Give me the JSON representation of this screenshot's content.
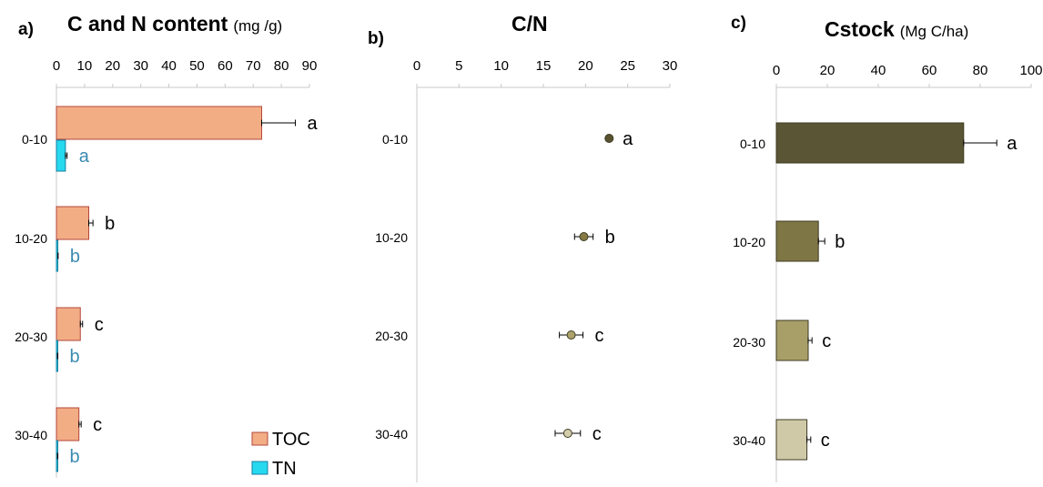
{
  "chart_data": [
    {
      "type": "bar",
      "panel": "a)",
      "title": "C and N content",
      "title_unit": "(mg /g)",
      "orientation": "horizontal",
      "xlim": [
        0,
        90
      ],
      "xticks": [
        "0",
        "10",
        "20",
        "30",
        "40",
        "50",
        "60",
        "70",
        "80",
        "90"
      ],
      "categories": [
        "0-10",
        "10-20",
        "20-30",
        "30-40"
      ],
      "series": [
        {
          "name": "TOC",
          "values": [
            73,
            11.5,
            8.5,
            8
          ],
          "errors": [
            12,
            1.5,
            0.8,
            0.8
          ],
          "letters": [
            "a",
            "b",
            "c",
            "c"
          ],
          "color": "#f2ad85",
          "stroke": "#b5463b",
          "letter_color": "#000000"
        },
        {
          "name": "TN",
          "values": [
            3.2,
            0.5,
            0.4,
            0.4
          ],
          "errors": [
            0.6,
            0.1,
            0.1,
            0.1
          ],
          "letters": [
            "a",
            "b",
            "b",
            "b"
          ],
          "color": "#26d9ef",
          "stroke": "#1a7fa0",
          "letter_color": "#3a8bb0"
        }
      ],
      "legend": "bottom-right"
    },
    {
      "type": "scatter",
      "panel": "b)",
      "title": "C/N",
      "xlim": [
        0,
        30
      ],
      "xticks": [
        "0",
        "5",
        "10",
        "15",
        "20",
        "25",
        "30"
      ],
      "categories": [
        "0-10",
        "10-20",
        "20-30",
        "30-40"
      ],
      "values": [
        22.8,
        19.8,
        18.3,
        17.9
      ],
      "errors": [
        0.2,
        1.1,
        1.4,
        1.5
      ],
      "letters": [
        "a",
        "b",
        "c",
        "c"
      ],
      "colors": [
        "#58522f",
        "#857a45",
        "#ada26a",
        "#d2ccaa"
      ]
    },
    {
      "type": "bar",
      "panel": "c)",
      "title": "Cstock",
      "title_unit": "(Mg C/ha)",
      "orientation": "horizontal",
      "xlim": [
        0,
        100
      ],
      "xticks": [
        "0",
        "20",
        "40",
        "60",
        "80",
        "100"
      ],
      "categories": [
        "0-10",
        "10-20",
        "20-30",
        "30-40"
      ],
      "values": [
        73.5,
        16.5,
        12.5,
        12
      ],
      "errors": [
        13,
        2.5,
        1.5,
        1.5
      ],
      "letters": [
        "a",
        "b",
        "c",
        "c"
      ],
      "colors": [
        "#5a5534",
        "#7f7645",
        "#a89f68",
        "#cfc9a8"
      ]
    }
  ]
}
